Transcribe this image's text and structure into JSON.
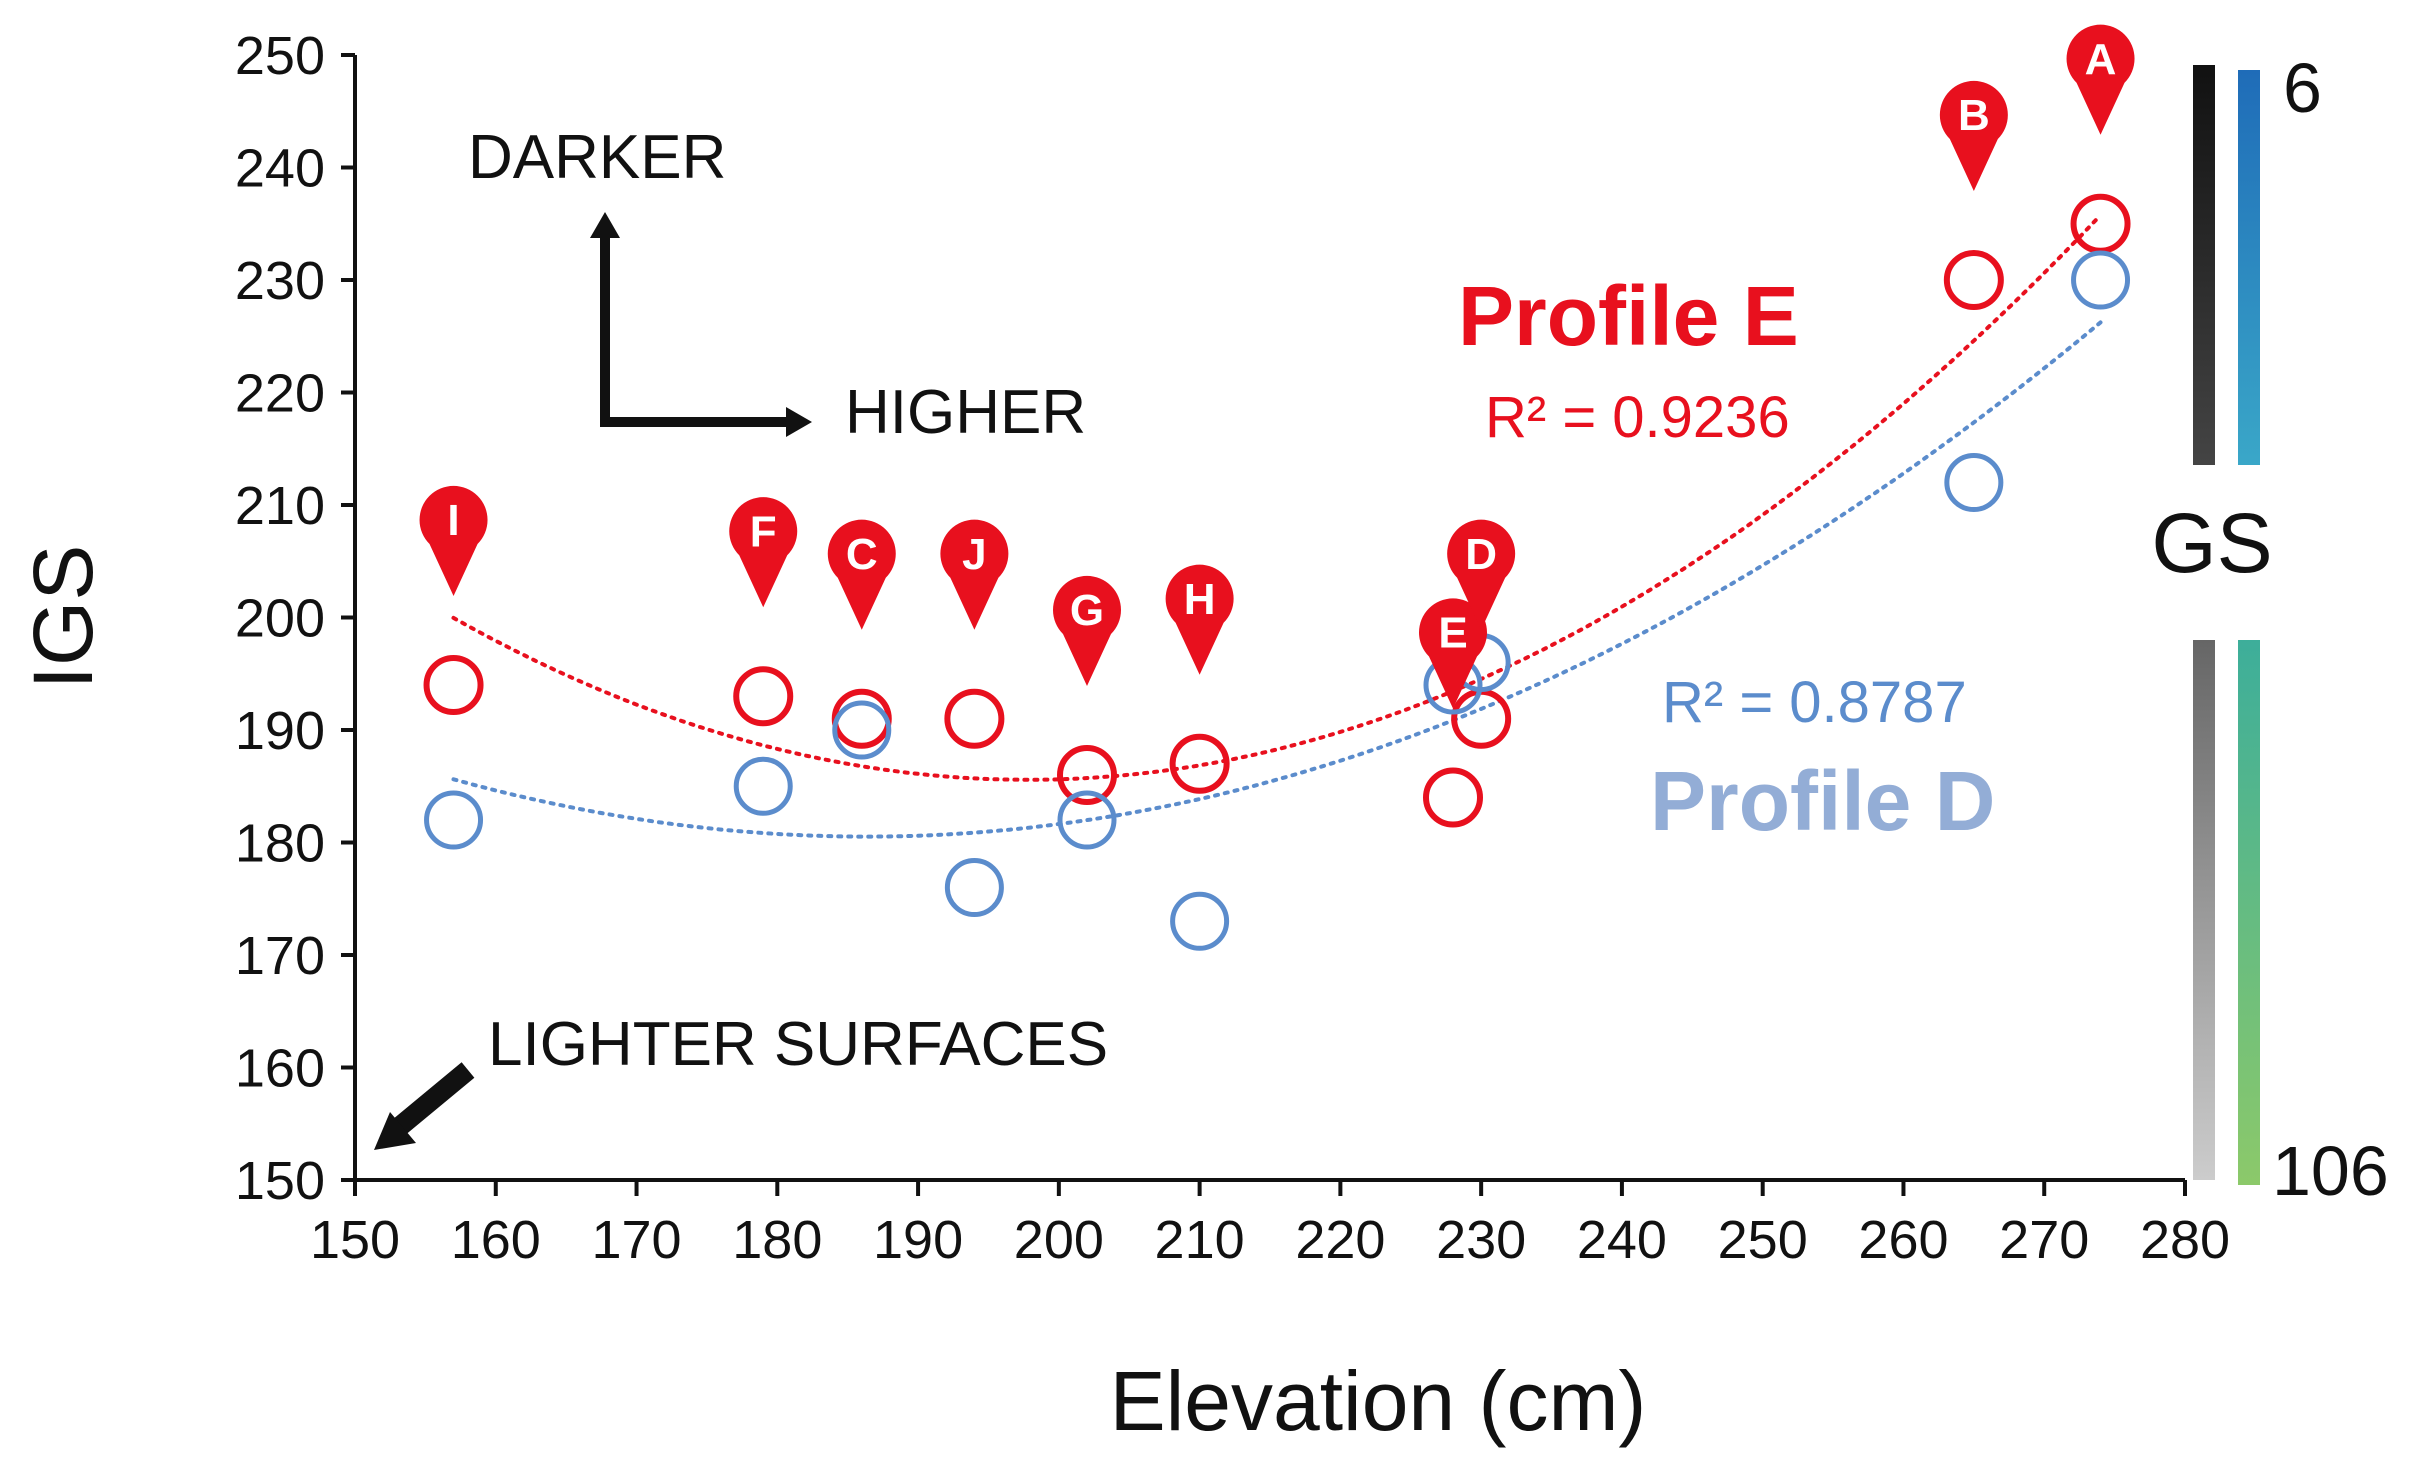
{
  "chart_data": {
    "type": "scatter",
    "title": "",
    "xlabel": "Elevation (cm)",
    "ylabel": "IGS",
    "xlim": [
      150,
      280
    ],
    "ylim": [
      150,
      250
    ],
    "x_ticks": [
      150,
      160,
      170,
      180,
      190,
      200,
      210,
      220,
      230,
      240,
      250,
      260,
      270,
      280
    ],
    "y_ticks": [
      150,
      160,
      170,
      180,
      190,
      200,
      210,
      220,
      230,
      240,
      250
    ],
    "grid": false,
    "series": [
      {
        "name": "Profile E",
        "color": "#e8101e",
        "marker": "open-circle",
        "r_squared_label": "R² = 0.9236",
        "trendline": "polynomial-dotted",
        "points": [
          {
            "x": 157,
            "y": 194,
            "label": "I"
          },
          {
            "x": 179,
            "y": 193,
            "label": "F"
          },
          {
            "x": 186,
            "y": 191,
            "label": "C"
          },
          {
            "x": 194,
            "y": 191,
            "label": "J"
          },
          {
            "x": 202,
            "y": 186,
            "label": "G"
          },
          {
            "x": 210,
            "y": 187,
            "label": "H"
          },
          {
            "x": 228,
            "y": 184,
            "label": "E"
          },
          {
            "x": 230,
            "y": 191,
            "label": "D"
          },
          {
            "x": 265,
            "y": 230,
            "label": "B"
          },
          {
            "x": 274,
            "y": 235,
            "label": "A"
          }
        ]
      },
      {
        "name": "Profile D",
        "color": "#5b8ccc",
        "marker": "open-circle",
        "r_squared_label": "R² = 0.8787",
        "trendline": "polynomial-dotted",
        "points": [
          {
            "x": 157,
            "y": 182
          },
          {
            "x": 179,
            "y": 185
          },
          {
            "x": 186,
            "y": 190
          },
          {
            "x": 194,
            "y": 176
          },
          {
            "x": 202,
            "y": 182
          },
          {
            "x": 210,
            "y": 173
          },
          {
            "x": 228,
            "y": 194
          },
          {
            "x": 230,
            "y": 196
          },
          {
            "x": 265,
            "y": 212
          },
          {
            "x": 274,
            "y": 230
          }
        ]
      }
    ],
    "annotations": {
      "darker": "DARKER",
      "higher": "HIGHER",
      "lighter": "LIGHTER SURFACES"
    },
    "gs_scale": {
      "label": "GS",
      "top": "6",
      "bottom": "106"
    }
  }
}
